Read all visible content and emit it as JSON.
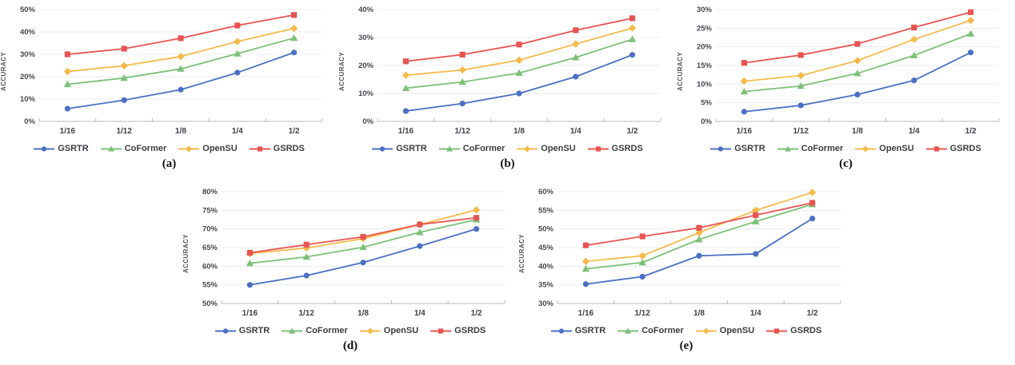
{
  "ui": {
    "y_axis_title": "ACCURACY",
    "colors": {
      "grid": "#eaecf2",
      "axis": "#b7b9bf",
      "tick_text": "#46484e",
      "legend_text": "#3b3d42"
    }
  },
  "series_meta": [
    {
      "name": "GSRTR",
      "color": "#4b70c4",
      "marker": "circle"
    },
    {
      "name": "CoFormer",
      "color": "#7cc178",
      "marker": "triangle"
    },
    {
      "name": "OpenSU",
      "color": "#f6ba4a",
      "marker": "diamond"
    },
    {
      "name": "GSRDS",
      "color": "#e85452",
      "marker": "square"
    }
  ],
  "chart_data": [
    {
      "type": "line",
      "caption": "(a)",
      "ylabel": "ACCURACY",
      "xlabel": "",
      "grid": true,
      "legend_position": "bottom",
      "categories": [
        "1/16",
        "1/12",
        "1/8",
        "1/4",
        "1/2"
      ],
      "ylim": [
        0,
        50
      ],
      "y_step": 10,
      "y_ticks": [
        "0%",
        "10%",
        "20%",
        "30%",
        "40%",
        "50%"
      ],
      "series": [
        {
          "name": "GSRTR",
          "values": [
            5.7,
            9.5,
            14.2,
            21.8,
            30.8
          ]
        },
        {
          "name": "CoFormer",
          "values": [
            16.6,
            19.4,
            23.5,
            30.3,
            37.3
          ]
        },
        {
          "name": "OpenSU",
          "values": [
            22.3,
            24.9,
            29.0,
            35.7,
            41.6
          ]
        },
        {
          "name": "GSRDS",
          "values": [
            30.0,
            32.5,
            37.2,
            42.9,
            47.6
          ]
        }
      ]
    },
    {
      "type": "line",
      "caption": "(b)",
      "ylabel": "ACCURACY",
      "xlabel": "",
      "grid": true,
      "legend_position": "bottom",
      "categories": [
        "1/16",
        "1/12",
        "1/8",
        "1/4",
        "1/2"
      ],
      "ylim": [
        0,
        40
      ],
      "y_step": 10,
      "y_ticks": [
        "0%",
        "10%",
        "20%",
        "30%",
        "40%"
      ],
      "series": [
        {
          "name": "GSRTR",
          "values": [
            3.7,
            6.4,
            10.0,
            16.0,
            23.8
          ]
        },
        {
          "name": "CoFormer",
          "values": [
            11.9,
            14.1,
            17.3,
            22.9,
            29.4
          ]
        },
        {
          "name": "OpenSU",
          "values": [
            16.5,
            18.4,
            21.9,
            27.7,
            33.4
          ]
        },
        {
          "name": "GSRDS",
          "values": [
            21.5,
            23.9,
            27.5,
            32.6,
            36.9
          ]
        }
      ]
    },
    {
      "type": "line",
      "caption": "(c)",
      "ylabel": "ACCURACY",
      "xlabel": "",
      "grid": true,
      "legend_position": "bottom",
      "categories": [
        "1/16",
        "1/12",
        "1/8",
        "1/4",
        "1/2"
      ],
      "ylim": [
        0,
        30
      ],
      "y_step": 5,
      "y_ticks": [
        "0%",
        "5%",
        "10%",
        "15%",
        "20%",
        "25%",
        "30%"
      ],
      "series": [
        {
          "name": "GSRTR",
          "values": [
            2.6,
            4.3,
            7.2,
            11.0,
            18.5
          ]
        },
        {
          "name": "CoFormer",
          "values": [
            8.0,
            9.5,
            12.9,
            17.7,
            23.5
          ]
        },
        {
          "name": "OpenSU",
          "values": [
            10.8,
            12.3,
            16.3,
            22.0,
            27.1
          ]
        },
        {
          "name": "GSRDS",
          "values": [
            15.7,
            17.8,
            20.8,
            25.2,
            29.3
          ]
        }
      ]
    },
    {
      "type": "line",
      "caption": "(d)",
      "ylabel": "ACCURACY",
      "xlabel": "",
      "grid": true,
      "legend_position": "bottom",
      "categories": [
        "1/16",
        "1/12",
        "1/8",
        "1/4",
        "1/2"
      ],
      "ylim": [
        50,
        80
      ],
      "y_step": 5,
      "y_ticks": [
        "50%",
        "55%",
        "60%",
        "65%",
        "70%",
        "75%",
        "80%"
      ],
      "series": [
        {
          "name": "GSRTR",
          "values": [
            55.0,
            57.5,
            61.0,
            65.4,
            70.0
          ]
        },
        {
          "name": "CoFormer",
          "values": [
            60.8,
            62.5,
            65.1,
            69.1,
            72.5
          ]
        },
        {
          "name": "OpenSU",
          "values": [
            63.4,
            64.9,
            67.4,
            71.2,
            75.1
          ]
        },
        {
          "name": "GSRDS",
          "values": [
            63.6,
            65.8,
            67.9,
            71.2,
            73.0
          ]
        }
      ]
    },
    {
      "type": "line",
      "caption": "(e)",
      "ylabel": "ACCURACY",
      "xlabel": "",
      "grid": true,
      "legend_position": "bottom",
      "categories": [
        "1/16",
        "1/12",
        "1/8",
        "1/4",
        "1/2"
      ],
      "ylim": [
        30,
        60
      ],
      "y_step": 5,
      "y_ticks": [
        "30%",
        "35%",
        "40%",
        "45%",
        "50%",
        "55%",
        "60%"
      ],
      "series": [
        {
          "name": "GSRTR",
          "values": [
            35.2,
            37.2,
            42.8,
            43.3,
            52.8
          ]
        },
        {
          "name": "CoFormer",
          "values": [
            39.3,
            41.0,
            47.2,
            52.0,
            56.6
          ]
        },
        {
          "name": "OpenSU",
          "values": [
            41.3,
            42.8,
            49.0,
            55.0,
            59.8
          ]
        },
        {
          "name": "GSRDS",
          "values": [
            45.6,
            48.0,
            50.3,
            53.7,
            57.0
          ]
        }
      ]
    }
  ]
}
